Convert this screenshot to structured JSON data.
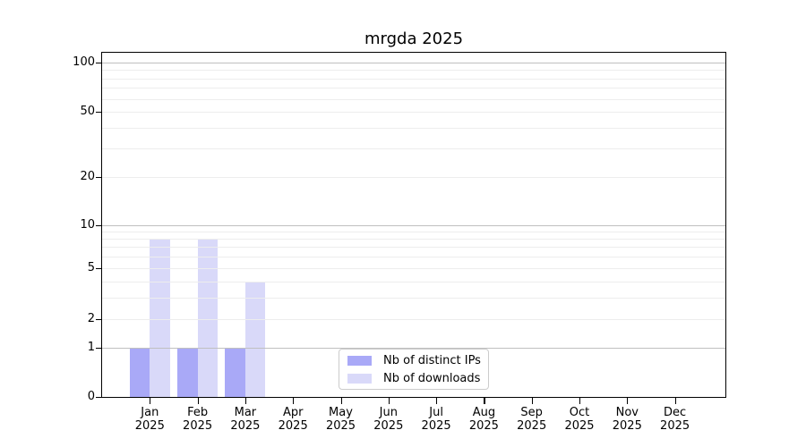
{
  "chart_data": {
    "type": "bar",
    "title": "mrgda 2025",
    "categories": [
      "Jan",
      "Feb",
      "Mar",
      "Apr",
      "May",
      "Jun",
      "Jul",
      "Aug",
      "Sep",
      "Oct",
      "Nov",
      "Dec"
    ],
    "year_label": "2025",
    "series": [
      {
        "name": "Nb of distinct IPs",
        "color": "#a9a9f7",
        "values": [
          1,
          1,
          1,
          0,
          0,
          0,
          0,
          0,
          0,
          0,
          0,
          0
        ]
      },
      {
        "name": "Nb of downloads",
        "color": "#d9d9f9",
        "values": [
          8,
          8,
          4,
          0,
          0,
          0,
          0,
          0,
          0,
          0,
          0,
          0
        ]
      }
    ],
    "xlabel": "",
    "ylabel": "",
    "yticks": [
      0,
      1,
      2,
      5,
      10,
      20,
      50,
      100
    ],
    "ylim": [
      0,
      130
    ],
    "yscale": "symlog",
    "grid": "horizontal major and minor gridlines",
    "legend_position": "inside-bottom-center",
    "colors": {
      "bar_distinct_ips": "#a9a9f7",
      "bar_downloads": "#d9d9f9",
      "major_grid": "#c0c0c0",
      "minor_grid": "#ededed",
      "axis": "#000000",
      "legend_border": "#cccccc",
      "background": "#ffffff"
    }
  }
}
